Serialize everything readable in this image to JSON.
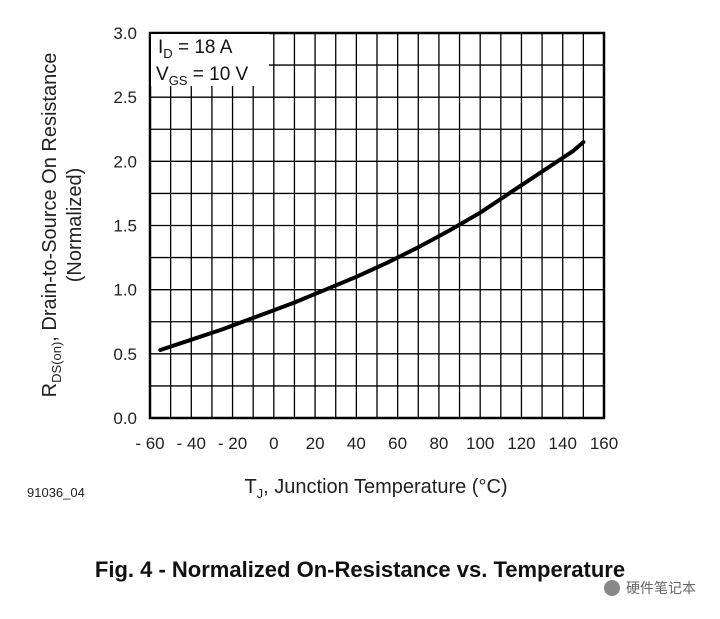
{
  "chart_data": {
    "type": "line",
    "x_tick_labels": [
      "- 60",
      "- 40",
      "- 20",
      "0",
      "20",
      "40",
      "60",
      "80",
      "100",
      "120",
      "140",
      "160"
    ],
    "x_ticks": [
      -60,
      -40,
      -20,
      0,
      20,
      40,
      60,
      80,
      100,
      120,
      140,
      160
    ],
    "y_tick_labels": [
      "0.0",
      "0.5",
      "1.0",
      "1.5",
      "2.0",
      "2.5",
      "3.0"
    ],
    "y_ticks": [
      0.0,
      0.5,
      1.0,
      1.5,
      2.0,
      2.5,
      3.0
    ],
    "xlim": [
      -60,
      160
    ],
    "ylim": [
      0,
      3
    ],
    "grid": true,
    "series": [
      {
        "x": [
          -55,
          -40,
          -25,
          -10,
          0,
          10,
          25,
          40,
          55,
          70,
          85,
          100,
          115,
          130,
          145,
          150
        ],
        "y": [
          0.53,
          0.61,
          0.69,
          0.78,
          0.84,
          0.9,
          1.0,
          1.1,
          1.21,
          1.33,
          1.46,
          1.6,
          1.76,
          1.92,
          2.08,
          2.15
        ],
        "color": "#000000"
      }
    ],
    "xlabel": {
      "main": "T",
      "sub": "J",
      "rest": ", Junction Temperature (°C)"
    },
    "ylabel": {
      "line1_main": "R",
      "line1_sub": "DS(on)",
      "line1_rest": ", Drain-to-Source On Resistance",
      "line2": "(Normalized)"
    },
    "annotations": [
      {
        "main": "I",
        "sub": "D",
        "rest": " = 18 A"
      },
      {
        "main": "V",
        "sub": "GS",
        "rest": " = 10 V"
      }
    ]
  },
  "figure_code": "91036_04",
  "caption": "Fig. 4 - Normalized On-Resistance vs. Temperature",
  "watermark": "硬件笔记本"
}
